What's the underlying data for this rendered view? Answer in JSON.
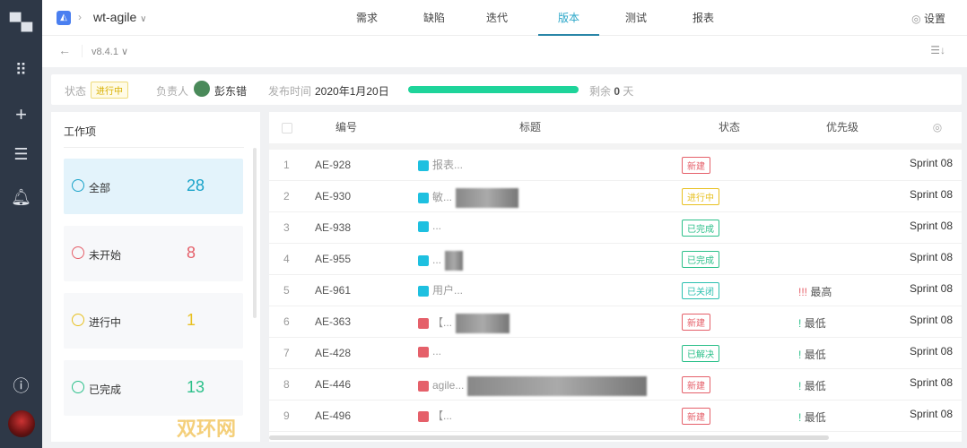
{
  "sidebar": {
    "icons": [
      "layout-icon",
      "apps-grid-icon",
      "plus-icon",
      "task-list-icon",
      "bell-icon",
      "help-icon"
    ]
  },
  "header": {
    "project": "wt-agile",
    "nav": [
      "需求",
      "缺陷",
      "迭代",
      "版本",
      "测试",
      "报表"
    ],
    "active_nav": "版本",
    "settings": "设置"
  },
  "toolbar": {
    "version": "v8.4.1"
  },
  "info": {
    "status_label": "状态",
    "status": "进行中",
    "owner_label": "负责人",
    "owner": "彭东错",
    "release_label": "发布时间",
    "release_date": "2020年1月20日",
    "progress_percent": 100,
    "remain_prefix": "剩余",
    "remain_days": "0",
    "remain_suffix": "天",
    "progress_color": "#1ed49a"
  },
  "workitems": {
    "title": "工作项",
    "cards": [
      {
        "name": "全部",
        "count": "28",
        "color": "#1aa3c9"
      },
      {
        "name": "未开始",
        "count": "8",
        "color": "#e5606a"
      },
      {
        "name": "进行中",
        "count": "1",
        "color": "#e8c020"
      },
      {
        "name": "已完成",
        "count": "13",
        "color": "#2cc08a"
      }
    ]
  },
  "table": {
    "headers": [
      "编号",
      "标题",
      "状态",
      "优先级"
    ],
    "rows": [
      {
        "n": "1",
        "id": "AE-928",
        "type": "story",
        "title": "报表...",
        "status": "新建",
        "priority": "",
        "sprint": "Sprint 08"
      },
      {
        "n": "2",
        "id": "AE-930",
        "type": "story",
        "title": "敏...",
        "status": "进行中",
        "priority": "",
        "sprint": "Sprint 08"
      },
      {
        "n": "3",
        "id": "AE-938",
        "type": "story",
        "title": "...",
        "status": "已完成",
        "priority": "",
        "sprint": "Sprint 08"
      },
      {
        "n": "4",
        "id": "AE-955",
        "type": "story",
        "title": "...",
        "status": "已完成",
        "priority": "",
        "sprint": "Sprint 08"
      },
      {
        "n": "5",
        "id": "AE-961",
        "type": "story",
        "title": "用户...",
        "status": "已关闭",
        "priority": "最高",
        "sprint": "Sprint 08"
      },
      {
        "n": "6",
        "id": "AE-363",
        "type": "bug",
        "title": "【...",
        "status": "新建",
        "priority": "最低",
        "sprint": "Sprint 08"
      },
      {
        "n": "7",
        "id": "AE-428",
        "type": "bug",
        "title": "...",
        "status": "已解决",
        "priority": "最低",
        "sprint": "Sprint 08"
      },
      {
        "n": "8",
        "id": "AE-446",
        "type": "bug",
        "title": "agile...",
        "status": "新建",
        "priority": "最低",
        "sprint": "Sprint 08"
      },
      {
        "n": "9",
        "id": "AE-496",
        "type": "bug",
        "title": "【...",
        "status": "新建",
        "priority": "最低",
        "sprint": "Sprint 08"
      }
    ]
  },
  "status_colors": {
    "新建": "#e5606a",
    "进行中": "#e8c020",
    "已完成": "#2cc08a",
    "已关闭": "#2cc0b0",
    "已解决": "#2cc08a"
  },
  "watermark": "双环网"
}
